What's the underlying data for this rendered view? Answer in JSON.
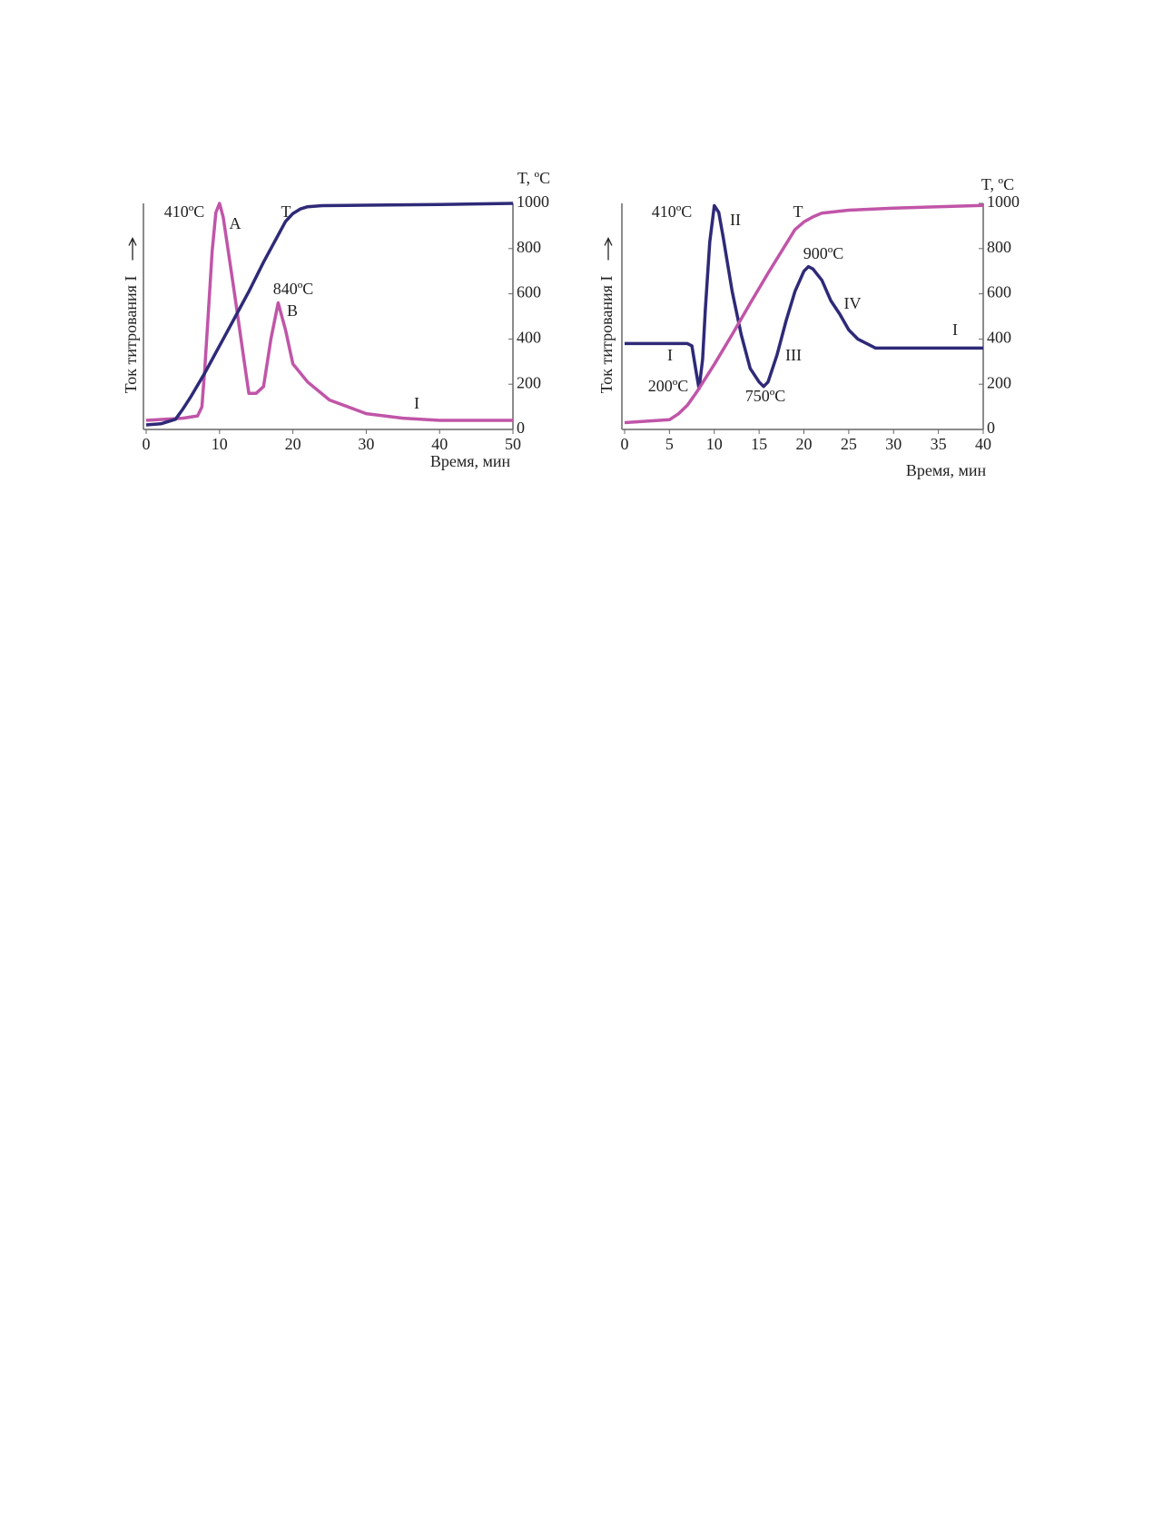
{
  "chart_data": [
    {
      "type": "line",
      "x_label": "Время, мин",
      "y_label": "Ток титрования  I",
      "y2_label": "T, ºC",
      "xlim": [
        0,
        50
      ],
      "xticks": [
        0,
        10,
        20,
        30,
        40,
        50
      ],
      "ylim": [
        0,
        100
      ],
      "y2lim": [
        0,
        1000
      ],
      "y2ticks": [
        0,
        200,
        400,
        600,
        800,
        1000
      ],
      "series": [
        {
          "color": "#c055a8",
          "x": [
            0,
            5,
            7,
            7.6,
            8,
            8.5,
            9,
            9.5,
            10,
            10.5,
            11,
            12,
            13.5,
            14,
            15,
            16,
            17,
            18,
            19,
            20,
            22,
            25,
            30,
            35,
            40,
            50
          ],
          "values": [
            4,
            5,
            6,
            10,
            27,
            53,
            79,
            96,
            100,
            94,
            83,
            61,
            27,
            16,
            16,
            19,
            40,
            56,
            44,
            29,
            21,
            13,
            7,
            5,
            4,
            4
          ]
        },
        {
          "color": "#2e2a78",
          "axis": "y2",
          "x": [
            0,
            2,
            4,
            5,
            6,
            8,
            10,
            12,
            14,
            16,
            18,
            19,
            20,
            21,
            22,
            24,
            30,
            40,
            50
          ],
          "values": [
            20,
            25,
            45,
            90,
            140,
            250,
            370,
            490,
            610,
            740,
            860,
            920,
            955,
            975,
            985,
            990,
            992,
            995,
            1000
          ]
        }
      ],
      "annotations": [
        "410ºC",
        "A",
        "T",
        "840ºC",
        "B",
        "I"
      ]
    },
    {
      "type": "line",
      "x_label": "Время, мин",
      "y_label": "Ток титрования  I",
      "y2_label": "T, ºC",
      "xlim": [
        0,
        40
      ],
      "xticks": [
        0,
        5,
        10,
        15,
        20,
        25,
        30,
        35,
        40
      ],
      "ylim": [
        0,
        100
      ],
      "y2lim": [
        0,
        1000
      ],
      "y2ticks": [
        0,
        200,
        400,
        600,
        800,
        1000
      ],
      "series": [
        {
          "color": "#2e2a78",
          "x": [
            0,
            7,
            7.5,
            8,
            8.3,
            8.7,
            9,
            9.5,
            10,
            10.5,
            11,
            12,
            13,
            14,
            15,
            15.5,
            16,
            17,
            18,
            19,
            20,
            20.5,
            21,
            22,
            23,
            24,
            25,
            26,
            28,
            29,
            40
          ],
          "values": [
            38,
            38,
            37,
            25,
            18,
            31,
            53,
            83,
            99,
            96,
            85,
            61,
            42,
            27,
            21,
            19,
            21,
            33,
            48,
            61,
            70,
            72,
            71,
            66,
            57,
            51,
            44,
            40,
            36,
            36,
            36
          ]
        },
        {
          "color": "#c055a8",
          "axis": "y2",
          "x": [
            0,
            5,
            6,
            7,
            8,
            10,
            12,
            14,
            16,
            18,
            19,
            20,
            21,
            22,
            25,
            30,
            40
          ],
          "values": [
            30,
            43,
            69,
            107,
            163,
            288,
            420,
            558,
            691,
            820,
            884,
            918,
            940,
            957,
            970,
            979,
            991
          ]
        }
      ],
      "annotations": [
        "410ºC",
        "II",
        "T",
        "900ºC",
        "IV",
        "I",
        "I",
        "III",
        "200ºC",
        "750ºC"
      ]
    }
  ]
}
